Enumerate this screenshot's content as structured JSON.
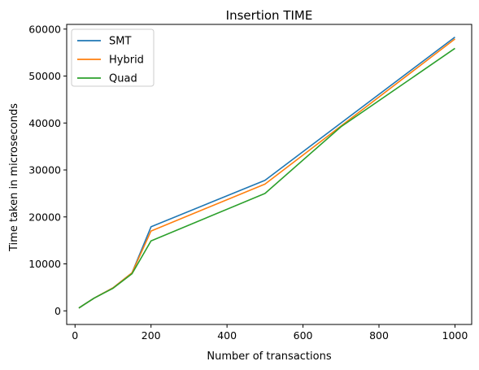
{
  "chart_data": {
    "type": "line",
    "title": "Insertion TIME",
    "xlabel": "Number of transactions",
    "ylabel": "Time taken in microseconds",
    "xlim": [
      -22,
      1044
    ],
    "ylim": [
      -2900,
      61000
    ],
    "xticks": [
      0,
      200,
      400,
      600,
      800,
      1000
    ],
    "yticks": [
      0,
      10000,
      20000,
      30000,
      40000,
      50000,
      60000
    ],
    "grid": false,
    "legend_position": "top-left",
    "series": [
      {
        "name": "SMT",
        "color": "#1f77b4",
        "x": [
          10,
          25,
          50,
          100,
          150,
          200,
          500,
          1000
        ],
        "y": [
          600,
          1400,
          2700,
          4900,
          8100,
          17900,
          27800,
          58300
        ]
      },
      {
        "name": "Hybrid",
        "color": "#ff7f0e",
        "x": [
          10,
          25,
          50,
          100,
          150,
          200,
          500,
          1000
        ],
        "y": [
          600,
          1400,
          2700,
          4900,
          8100,
          17000,
          27000,
          57900
        ]
      },
      {
        "name": "Quad",
        "color": "#2ca02c",
        "x": [
          10,
          25,
          50,
          100,
          150,
          200,
          500,
          700,
          1000
        ],
        "y": [
          600,
          1400,
          2700,
          4800,
          7900,
          14900,
          25000,
          39200,
          55900
        ]
      }
    ]
  }
}
